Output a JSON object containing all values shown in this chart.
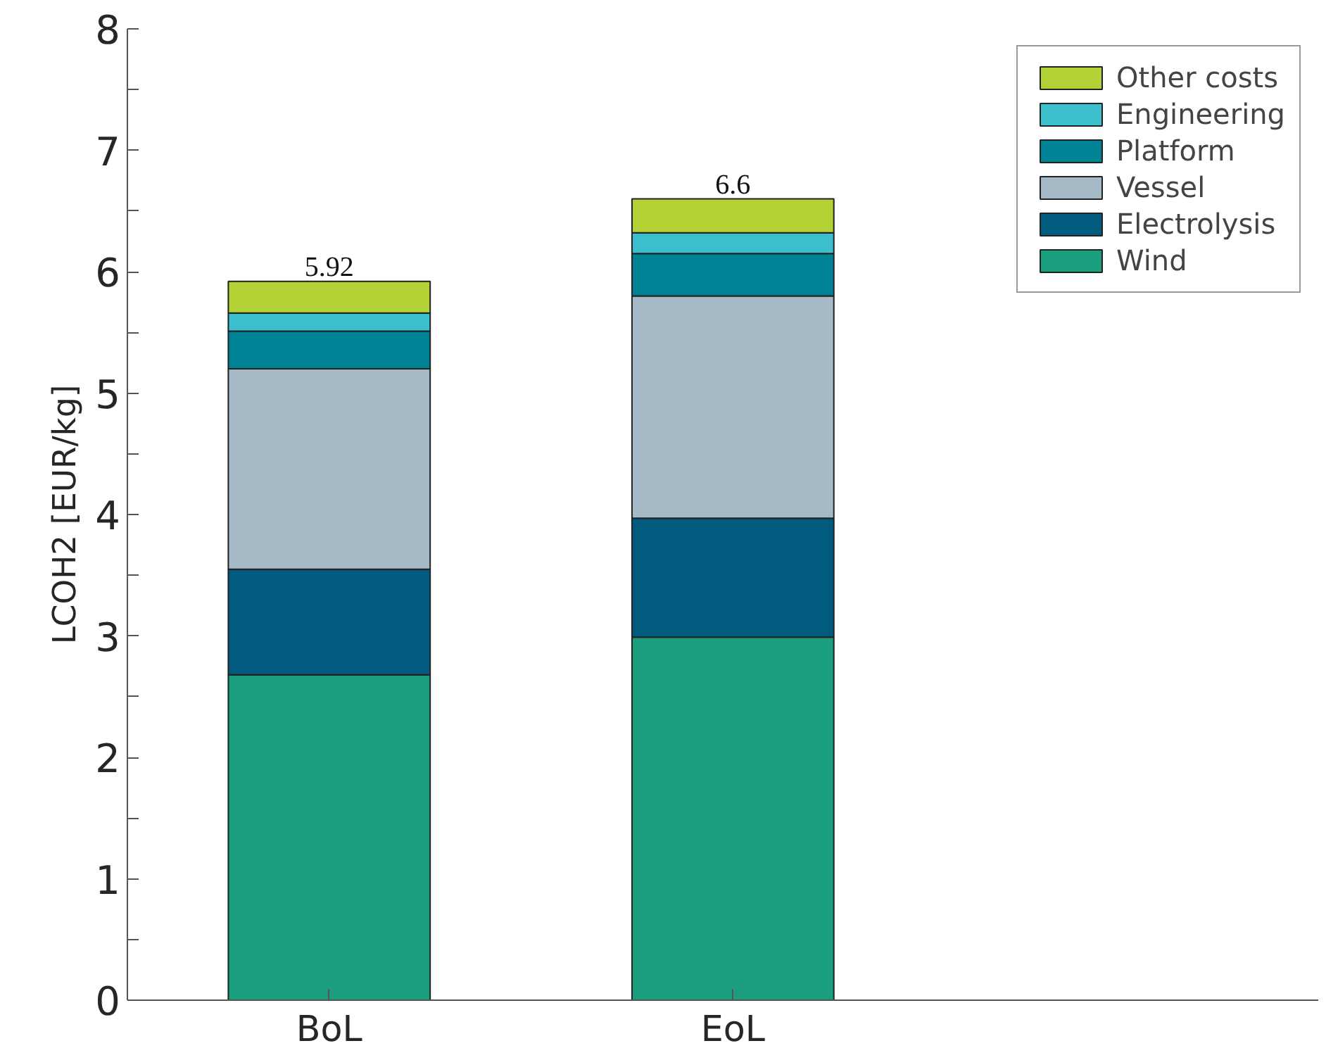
{
  "chart_data": {
    "type": "bar",
    "stacked": true,
    "ylabel": "LCOH2 [EUR/kg]",
    "categories": [
      "BoL",
      "EoL"
    ],
    "series": [
      {
        "name": "Wind",
        "color": "#1a9e7d",
        "values": [
          2.68,
          2.99
        ]
      },
      {
        "name": "Electrolysis",
        "color": "#005b7f",
        "values": [
          0.87,
          0.98
        ]
      },
      {
        "name": "Vessel",
        "color": "#a6b9c6",
        "values": [
          1.65,
          1.83
        ]
      },
      {
        "name": "Platform",
        "color": "#008295",
        "values": [
          0.31,
          0.35
        ]
      },
      {
        "name": "Engineering",
        "color": "#3bbfcc",
        "values": [
          0.15,
          0.17
        ]
      },
      {
        "name": "Other costs",
        "color": "#b2d235",
        "values": [
          0.26,
          0.28
        ]
      }
    ],
    "totals": [
      "5.92",
      "6.6"
    ],
    "ylim": [
      0,
      8
    ],
    "yticks": [
      0,
      {
        "value": 0.5,
        "label": null
      },
      1,
      {
        "value": 1.5,
        "label": null
      },
      2,
      {
        "value": 2.5,
        "label": null
      },
      3,
      {
        "value": 3.5,
        "label": null
      },
      4,
      {
        "value": 4.5,
        "label": null
      },
      5,
      {
        "value": 5.5,
        "label": null
      },
      6,
      {
        "value": 6.5,
        "label": null
      },
      7,
      {
        "value": 7.5,
        "label": null
      },
      8
    ],
    "legend": "top right",
    "grid": false
  }
}
